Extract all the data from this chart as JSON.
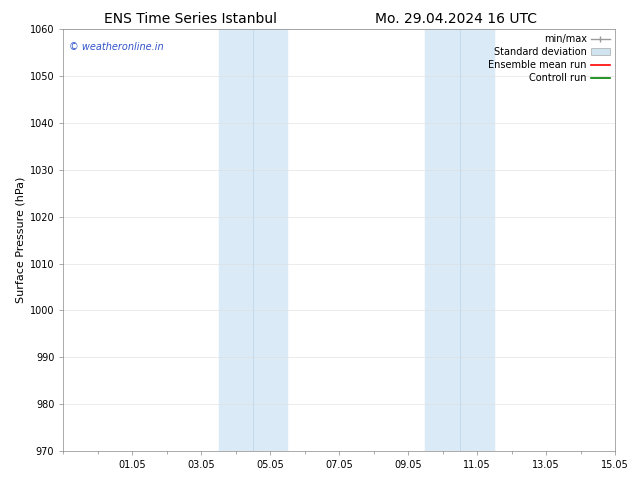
{
  "title_left": "ENS Time Series Istanbul",
  "title_right": "Mo. 29.04.2024 16 UTC",
  "ylabel": "Surface Pressure (hPa)",
  "ylim": [
    970,
    1060
  ],
  "yticks": [
    970,
    980,
    990,
    1000,
    1010,
    1020,
    1030,
    1040,
    1050,
    1060
  ],
  "xtick_labels": [
    "01.05",
    "03.05",
    "05.05",
    "07.05",
    "09.05",
    "11.05",
    "13.05",
    "15.05"
  ],
  "xtick_positions": [
    2,
    4,
    6,
    8,
    10,
    12,
    14,
    16
  ],
  "xlim": [
    0,
    16
  ],
  "shaded_bands": [
    {
      "x_start": 4.5,
      "x_end": 5.5,
      "color": "#daeaf6"
    },
    {
      "x_start": 5.5,
      "x_end": 6.5,
      "color": "#daeaf6"
    },
    {
      "x_start": 10.5,
      "x_end": 11.5,
      "color": "#daeaf6"
    },
    {
      "x_start": 11.5,
      "x_end": 12.5,
      "color": "#daeaf6"
    }
  ],
  "watermark": "© weatheronline.in",
  "watermark_color": "#3355cc",
  "bg_color": "#ffffff",
  "grid_color": "#cccccc",
  "title_fontsize": 10,
  "axis_label_fontsize": 8,
  "tick_fontsize": 7,
  "legend_fontsize": 7,
  "watermark_fontsize": 7
}
